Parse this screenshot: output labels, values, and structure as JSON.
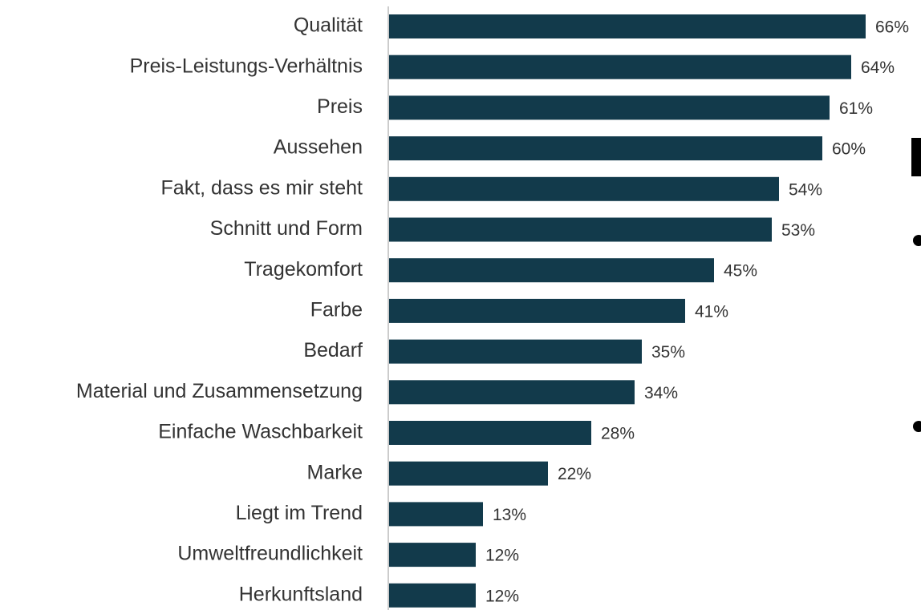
{
  "chart_data": {
    "type": "hbar",
    "categories": [
      "Qualität",
      "Preis-Leistungs-Verhältnis",
      "Preis",
      "Aussehen",
      "Fakt, dass es mir steht",
      "Schnitt und Form",
      "Tragekomfort",
      "Farbe",
      "Bedarf",
      "Material und Zusammensetzung",
      "Einfache Waschbarkeit",
      "Marke",
      "Liegt im Trend",
      "Umweltfreundlichkeit",
      "Herkunftsland"
    ],
    "values": [
      66,
      64,
      61,
      60,
      54,
      53,
      45,
      41,
      35,
      34,
      28,
      22,
      13,
      12,
      12
    ],
    "value_labels": [
      "66%",
      "64%",
      "61%",
      "60%",
      "54%",
      "53%",
      "45%",
      "41%",
      "35%",
      "34%",
      "28%",
      "22%",
      "13%",
      "12%",
      "12%"
    ],
    "color": "#123a4b",
    "xlim": [
      0,
      73
    ]
  }
}
